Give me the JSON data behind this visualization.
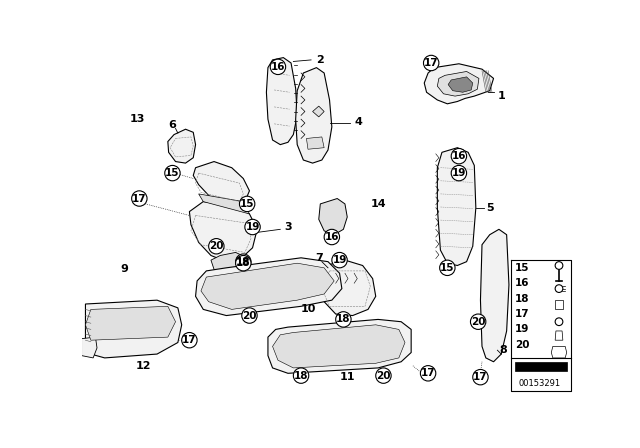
{
  "bg_color": "#ffffff",
  "doc_number": "00153291",
  "line_color": "#000000",
  "fill_light": "#f2f2f2",
  "fill_medium": "#e0e0e0",
  "fill_dark": "#c8c8c8",
  "circle_r": 10,
  "fig_w": 6.4,
  "fig_h": 4.48,
  "dpi": 100
}
